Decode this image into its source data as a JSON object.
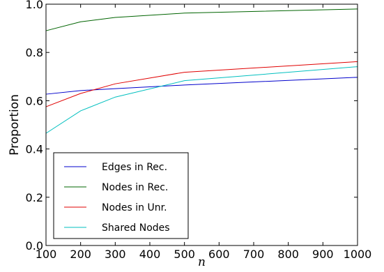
{
  "chart_data": {
    "type": "line",
    "xlabel": "n",
    "ylabel": "Proportion",
    "xlim": [
      100,
      1000
    ],
    "ylim": [
      0.0,
      1.0
    ],
    "xticks": [
      100,
      200,
      300,
      400,
      500,
      600,
      700,
      800,
      900,
      1000
    ],
    "yticks": [
      0.0,
      0.2,
      0.4,
      0.6,
      0.8,
      1.0
    ],
    "xtick_labels": [
      "100",
      "200",
      "300",
      "400",
      "500",
      "600",
      "700",
      "800",
      "900",
      "1000"
    ],
    "ytick_labels": [
      "0.0",
      "0.2",
      "0.4",
      "0.6",
      "0.8",
      "1.0"
    ],
    "grid": false,
    "legend_position": "lower-left",
    "x": [
      100,
      200,
      300,
      500,
      1000
    ],
    "series": [
      {
        "name": "Edges in Rec.",
        "color": "#0000cc",
        "values": [
          0.627,
          0.642,
          0.65,
          0.665,
          0.697
        ]
      },
      {
        "name": "Nodes in Rec.",
        "color": "#006400",
        "values": [
          0.89,
          0.927,
          0.945,
          0.963,
          0.98
        ]
      },
      {
        "name": "Nodes in Unr.",
        "color": "#e00000",
        "values": [
          0.575,
          0.63,
          0.67,
          0.718,
          0.762
        ]
      },
      {
        "name": "Shared Nodes",
        "color": "#00bfbf",
        "values": [
          0.465,
          0.558,
          0.615,
          0.683,
          0.741
        ]
      }
    ]
  }
}
